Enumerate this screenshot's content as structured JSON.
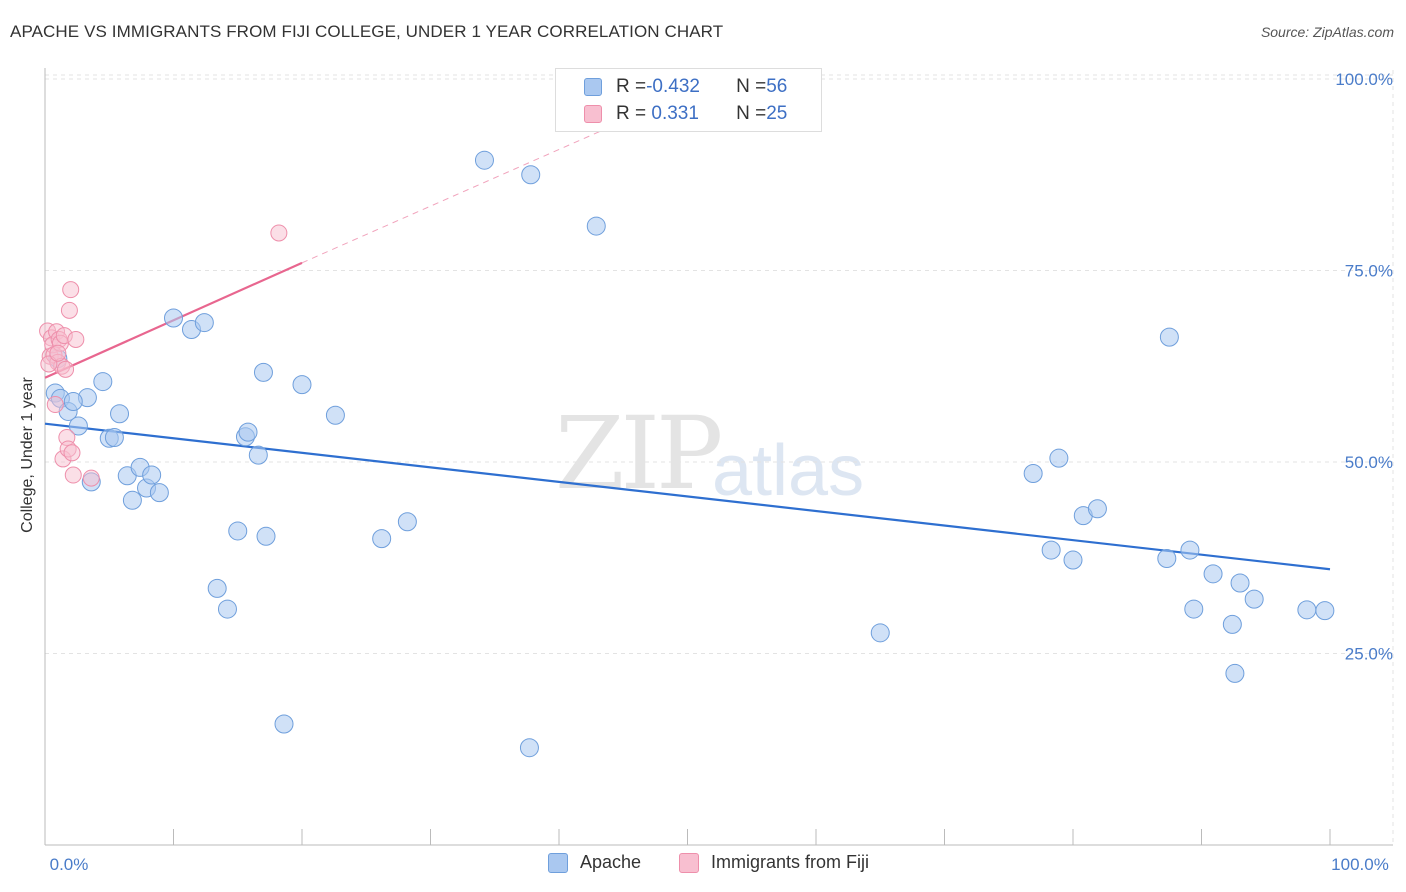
{
  "title": "APACHE VS IMMIGRANTS FROM FIJI COLLEGE, UNDER 1 YEAR CORRELATION CHART",
  "source": "Source: ZipAtlas.com",
  "watermark": {
    "zip": "ZIP",
    "atlas": "atlas"
  },
  "legend": {
    "rows": [
      {
        "r_label": "R = ",
        "r_value": "-0.432",
        "n_label": "N = ",
        "n_value": "56"
      },
      {
        "r_label": "R = ",
        "r_value": " 0.331",
        "n_label": "N = ",
        "n_value": "25"
      }
    ]
  },
  "bottom_legend": {
    "series1": "Apache",
    "series2": "Immigrants from Fiji"
  },
  "colors": {
    "apache_fill": "#aac8f0",
    "apache_stroke": "#6f9fdc",
    "apache_line": "#2e6fd0",
    "fiji_fill": "#f8bfd0",
    "fiji_stroke": "#ee8fab",
    "fiji_line": "#e8668f",
    "tick": "#4a7cc9",
    "grid": "#e3e3e3"
  },
  "chart_data": {
    "type": "scatter",
    "title": "APACHE VS IMMIGRANTS FROM FIJI COLLEGE, UNDER 1 YEAR CORRELATION CHART",
    "xlabel": "",
    "ylabel": "College, Under 1 year",
    "xlim": [
      0,
      100
    ],
    "ylim": [
      0,
      100
    ],
    "x_tick_labels": [
      "0.0%",
      "100.0%"
    ],
    "y_ticks": [
      25,
      50,
      75,
      100
    ],
    "y_tick_labels": [
      "25.0%",
      "50.0%",
      "75.0%",
      "100.0%"
    ],
    "grid": true,
    "legend_position": "top-center",
    "series": [
      {
        "name": "Apache",
        "r": -0.432,
        "n": 56,
        "trend": {
          "x": [
            0,
            100
          ],
          "y": [
            55.0,
            36.0
          ]
        },
        "points": [
          [
            1.0,
            63.5
          ],
          [
            0.8,
            59
          ],
          [
            1.2,
            58.3
          ],
          [
            1.8,
            56.6
          ],
          [
            2.6,
            54.7
          ],
          [
            3.3,
            58.4
          ],
          [
            3.6,
            47.4
          ],
          [
            4.5,
            60.5
          ],
          [
            5.0,
            53.1
          ],
          [
            5.4,
            53.2
          ],
          [
            5.8,
            56.3
          ],
          [
            6.4,
            48.2
          ],
          [
            6.8,
            45
          ],
          [
            7.4,
            49.3
          ],
          [
            7.9,
            46.6
          ],
          [
            8.3,
            48.3
          ],
          [
            8.9,
            46.0
          ],
          [
            10.0,
            68.8
          ],
          [
            11.4,
            67.3
          ],
          [
            12.4,
            68.2
          ],
          [
            13.4,
            33.5
          ],
          [
            14.2,
            30.8
          ],
          [
            15.0,
            41.0
          ],
          [
            15.6,
            53.3
          ],
          [
            15.8,
            53.9
          ],
          [
            16.6,
            50.9
          ],
          [
            17.0,
            61.7
          ],
          [
            17.2,
            40.3
          ],
          [
            18.6,
            15.8
          ],
          [
            20.0,
            60.1
          ],
          [
            22.6,
            56.1
          ],
          [
            26.2,
            40.0
          ],
          [
            28.2,
            42.2
          ],
          [
            34.2,
            89.4
          ],
          [
            37.7,
            12.7
          ],
          [
            37.8,
            87.5
          ],
          [
            42.9,
            80.8
          ],
          [
            65.0,
            27.7
          ],
          [
            76.9,
            48.5
          ],
          [
            78.3,
            38.5
          ],
          [
            78.9,
            50.5
          ],
          [
            80.0,
            37.2
          ],
          [
            80.8,
            43.0
          ],
          [
            81.9,
            43.9
          ],
          [
            87.3,
            37.4
          ],
          [
            87.5,
            66.3
          ],
          [
            89.1,
            38.5
          ],
          [
            89.4,
            30.8
          ],
          [
            90.9,
            35.4
          ],
          [
            92.4,
            28.8
          ],
          [
            92.6,
            22.4
          ],
          [
            93.0,
            34.2
          ],
          [
            94.1,
            32.1
          ],
          [
            98.2,
            30.7
          ],
          [
            99.6,
            30.6
          ],
          [
            2.2,
            57.9
          ]
        ]
      },
      {
        "name": "Immigrants from Fiji",
        "r": 0.331,
        "n": 25,
        "trend": {
          "x": [
            0,
            20
          ],
          "y": [
            61.0,
            76.0
          ],
          "dashed_extension_to": [
            45,
            94.5
          ]
        },
        "points": [
          [
            0.2,
            67.1
          ],
          [
            0.4,
            63.8
          ],
          [
            0.5,
            66.2
          ],
          [
            0.6,
            65.3
          ],
          [
            0.7,
            64.0
          ],
          [
            0.8,
            57.5
          ],
          [
            0.9,
            67.0
          ],
          [
            1.0,
            63.0
          ],
          [
            1.1,
            66.0
          ],
          [
            1.2,
            65.5
          ],
          [
            1.3,
            62.5
          ],
          [
            1.4,
            50.4
          ],
          [
            1.5,
            66.5
          ],
          [
            1.6,
            62.1
          ],
          [
            1.7,
            53.2
          ],
          [
            1.8,
            51.7
          ],
          [
            1.9,
            69.8
          ],
          [
            2.0,
            72.5
          ],
          [
            2.1,
            51.2
          ],
          [
            2.2,
            48.3
          ],
          [
            2.4,
            66.0
          ],
          [
            3.6,
            47.9
          ],
          [
            18.2,
            79.9
          ],
          [
            0.3,
            62.8
          ],
          [
            1.0,
            64.2
          ]
        ]
      }
    ]
  }
}
